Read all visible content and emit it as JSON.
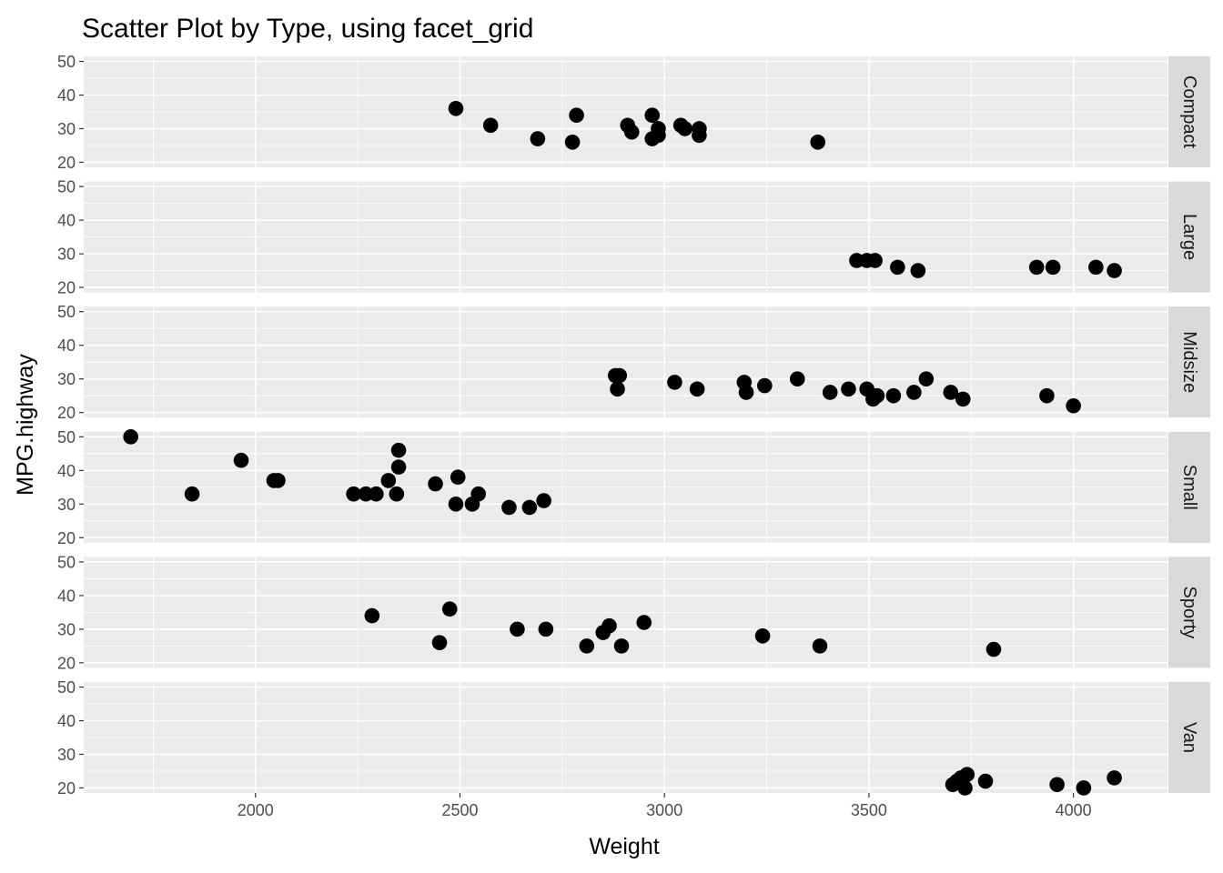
{
  "chart_data": {
    "type": "scatter",
    "title": "Scatter Plot by Type, using facet_grid",
    "xlabel": "Weight",
    "ylabel": "MPG.highway",
    "xlim": [
      1580,
      4230
    ],
    "ylim": [
      18.5,
      51.5
    ],
    "x_ticks": [
      2000,
      2500,
      3000,
      3500,
      4000
    ],
    "y_ticks": [
      20,
      30,
      40,
      50
    ],
    "grid": true,
    "legend": "none",
    "point_color": "#000000",
    "panel_color": "#EBEBEB",
    "strip_color": "#D9D9D9",
    "facets": [
      {
        "name": "Compact",
        "points": [
          {
            "x": 2490,
            "y": 36
          },
          {
            "x": 2575,
            "y": 31
          },
          {
            "x": 2690,
            "y": 27
          },
          {
            "x": 2775,
            "y": 26
          },
          {
            "x": 2785,
            "y": 34
          },
          {
            "x": 2910,
            "y": 31
          },
          {
            "x": 2920,
            "y": 29
          },
          {
            "x": 2970,
            "y": 34
          },
          {
            "x": 2970,
            "y": 27
          },
          {
            "x": 2985,
            "y": 28
          },
          {
            "x": 2985,
            "y": 30
          },
          {
            "x": 3040,
            "y": 31
          },
          {
            "x": 3050,
            "y": 30
          },
          {
            "x": 3085,
            "y": 30
          },
          {
            "x": 3085,
            "y": 28
          },
          {
            "x": 3375,
            "y": 26
          }
        ]
      },
      {
        "name": "Large",
        "points": [
          {
            "x": 3470,
            "y": 28
          },
          {
            "x": 3495,
            "y": 28
          },
          {
            "x": 3515,
            "y": 28
          },
          {
            "x": 3570,
            "y": 26
          },
          {
            "x": 3620,
            "y": 25
          },
          {
            "x": 3910,
            "y": 26
          },
          {
            "x": 3950,
            "y": 26
          },
          {
            "x": 4055,
            "y": 26
          },
          {
            "x": 4100,
            "y": 25
          }
        ]
      },
      {
        "name": "Midsize",
        "points": [
          {
            "x": 2880,
            "y": 31
          },
          {
            "x": 2890,
            "y": 31
          },
          {
            "x": 2885,
            "y": 27
          },
          {
            "x": 3025,
            "y": 29
          },
          {
            "x": 3080,
            "y": 27
          },
          {
            "x": 3195,
            "y": 29
          },
          {
            "x": 3200,
            "y": 26
          },
          {
            "x": 3245,
            "y": 28
          },
          {
            "x": 3325,
            "y": 30
          },
          {
            "x": 3405,
            "y": 26
          },
          {
            "x": 3450,
            "y": 27
          },
          {
            "x": 3495,
            "y": 27
          },
          {
            "x": 3510,
            "y": 24
          },
          {
            "x": 3515,
            "y": 25
          },
          {
            "x": 3520,
            "y": 25
          },
          {
            "x": 3560,
            "y": 25
          },
          {
            "x": 3610,
            "y": 26
          },
          {
            "x": 3640,
            "y": 30
          },
          {
            "x": 3700,
            "y": 26
          },
          {
            "x": 3730,
            "y": 24
          },
          {
            "x": 3935,
            "y": 25
          },
          {
            "x": 4000,
            "y": 22
          }
        ]
      },
      {
        "name": "Small",
        "points": [
          {
            "x": 1695,
            "y": 50
          },
          {
            "x": 1845,
            "y": 33
          },
          {
            "x": 1965,
            "y": 43
          },
          {
            "x": 2045,
            "y": 37
          },
          {
            "x": 2055,
            "y": 37
          },
          {
            "x": 2240,
            "y": 33
          },
          {
            "x": 2270,
            "y": 33
          },
          {
            "x": 2295,
            "y": 33
          },
          {
            "x": 2325,
            "y": 37
          },
          {
            "x": 2345,
            "y": 33
          },
          {
            "x": 2350,
            "y": 41
          },
          {
            "x": 2350,
            "y": 46
          },
          {
            "x": 2440,
            "y": 36
          },
          {
            "x": 2490,
            "y": 30
          },
          {
            "x": 2495,
            "y": 38
          },
          {
            "x": 2530,
            "y": 30
          },
          {
            "x": 2545,
            "y": 33
          },
          {
            "x": 2620,
            "y": 29
          },
          {
            "x": 2670,
            "y": 29
          },
          {
            "x": 2705,
            "y": 31
          }
        ]
      },
      {
        "name": "Sporty",
        "points": [
          {
            "x": 2285,
            "y": 34
          },
          {
            "x": 2450,
            "y": 26
          },
          {
            "x": 2475,
            "y": 36
          },
          {
            "x": 2640,
            "y": 30
          },
          {
            "x": 2710,
            "y": 30
          },
          {
            "x": 2810,
            "y": 25
          },
          {
            "x": 2850,
            "y": 29
          },
          {
            "x": 2865,
            "y": 31
          },
          {
            "x": 2895,
            "y": 25
          },
          {
            "x": 2950,
            "y": 32
          },
          {
            "x": 3240,
            "y": 28
          },
          {
            "x": 3380,
            "y": 25
          },
          {
            "x": 3805,
            "y": 24
          }
        ]
      },
      {
        "name": "Van",
        "points": [
          {
            "x": 3705,
            "y": 21
          },
          {
            "x": 3715,
            "y": 22
          },
          {
            "x": 3725,
            "y": 23
          },
          {
            "x": 3735,
            "y": 20
          },
          {
            "x": 3740,
            "y": 24
          },
          {
            "x": 3785,
            "y": 22
          },
          {
            "x": 3960,
            "y": 21
          },
          {
            "x": 4025,
            "y": 20
          },
          {
            "x": 4100,
            "y": 23
          }
        ]
      }
    ]
  }
}
